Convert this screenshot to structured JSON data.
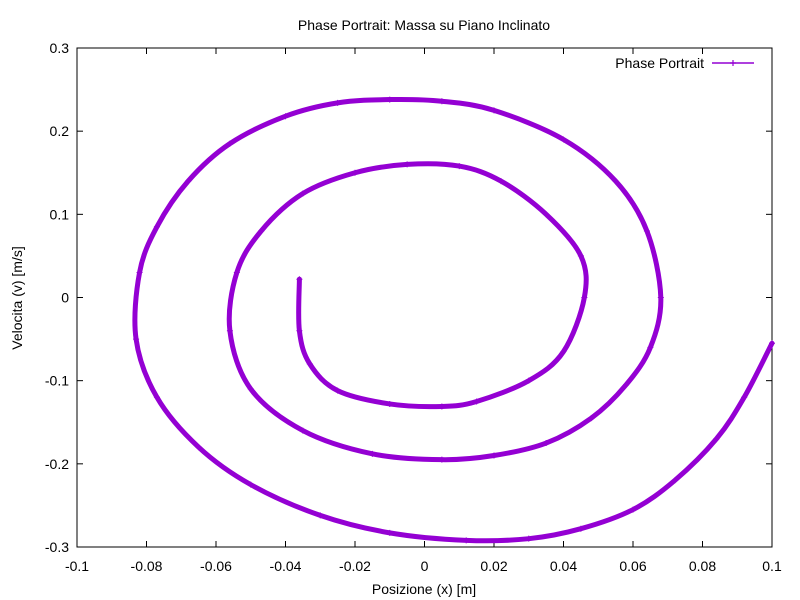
{
  "chart_data": {
    "type": "line",
    "title": "Phase Portrait: Massa su Piano Inclinato",
    "xlabel": "Posizione (x) [m]",
    "ylabel": "Velocita (v) [m/s]",
    "xlim": [
      -0.1,
      0.1
    ],
    "ylim": [
      -0.3,
      0.3
    ],
    "xticks": [
      -0.1,
      -0.08,
      -0.06,
      -0.04,
      -0.02,
      0,
      0.02,
      0.04,
      0.06,
      0.08,
      0.1
    ],
    "xtick_labels": [
      "-0.1",
      "-0.08",
      "-0.06",
      "-0.04",
      "-0.02",
      "0",
      "0.02",
      "0.04",
      "0.06",
      "0.08",
      "0.1"
    ],
    "yticks": [
      -0.3,
      -0.2,
      -0.1,
      0,
      0.1,
      0.2,
      0.3
    ],
    "ytick_labels": [
      "-0.3",
      "-0.2",
      "-0.1",
      "0",
      "0.1",
      "0.2",
      "0.3"
    ],
    "grid": false,
    "legend_position": "top-right",
    "series": [
      {
        "name": "Phase Portrait",
        "color": "#9400d3",
        "marker": "plus",
        "x": [
          0.1,
          0.092,
          0.084,
          0.072,
          0.06,
          0.045,
          0.03,
          0.012,
          -0.01,
          -0.03,
          -0.05,
          -0.065,
          -0.077,
          -0.083,
          -0.082,
          -0.077,
          -0.068,
          -0.056,
          -0.04,
          -0.025,
          -0.01,
          0.005,
          0.02,
          0.04,
          0.055,
          0.064,
          0.068,
          0.065,
          0.058,
          0.048,
          0.035,
          0.02,
          0.005,
          -0.015,
          -0.035,
          -0.05,
          -0.056,
          -0.054,
          -0.047,
          -0.035,
          -0.02,
          -0.005,
          0.01,
          0.022,
          0.035,
          0.045,
          0.046,
          0.04,
          0.03,
          0.015,
          0.005,
          -0.01,
          -0.025,
          -0.033,
          -0.036,
          -0.036
        ],
        "y": [
          -0.055,
          -0.12,
          -0.17,
          -0.22,
          -0.255,
          -0.278,
          -0.29,
          -0.292,
          -0.283,
          -0.262,
          -0.225,
          -0.18,
          -0.12,
          -0.05,
          0.03,
          0.085,
          0.14,
          0.185,
          0.218,
          0.234,
          0.238,
          0.236,
          0.225,
          0.19,
          0.14,
          0.08,
          0.0,
          -0.06,
          -0.105,
          -0.145,
          -0.175,
          -0.19,
          -0.195,
          -0.188,
          -0.16,
          -0.11,
          -0.04,
          0.03,
          0.08,
          0.125,
          0.15,
          0.16,
          0.158,
          0.14,
          0.1,
          0.05,
          0.0,
          -0.065,
          -0.1,
          -0.125,
          -0.131,
          -0.128,
          -0.112,
          -0.08,
          -0.04,
          0.022
        ]
      }
    ]
  }
}
